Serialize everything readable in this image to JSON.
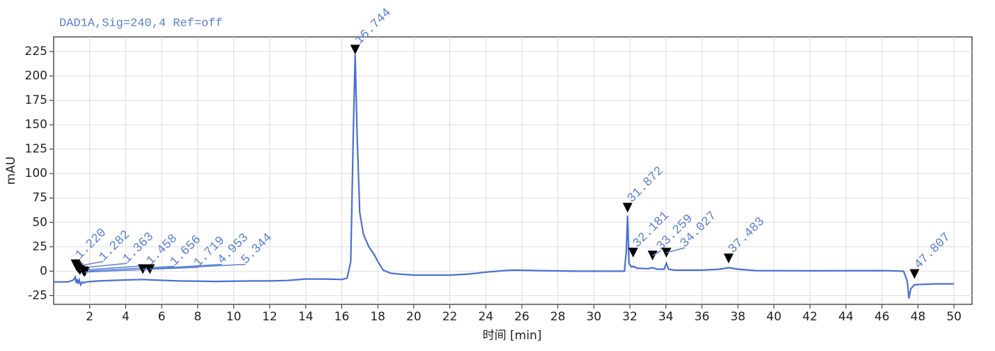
{
  "chart_data": {
    "type": "line",
    "title": "DAD1A,Sig=240,4  Ref=off",
    "x_label": "时间 [min]",
    "y_label": "mAU",
    "xlim": [
      0,
      51
    ],
    "ylim": [
      -34,
      240
    ],
    "xticks": [
      2,
      4,
      6,
      8,
      10,
      12,
      14,
      16,
      18,
      20,
      22,
      24,
      26,
      28,
      30,
      32,
      34,
      36,
      38,
      40,
      42,
      44,
      46,
      48,
      50
    ],
    "yticks": [
      -25,
      0,
      25,
      50,
      75,
      100,
      125,
      150,
      175,
      200,
      225
    ],
    "grid": true,
    "trace": {
      "color": "#4a6fd4",
      "x": [
        0,
        0.8,
        1.1,
        1.2,
        1.25,
        1.3,
        1.36,
        1.42,
        1.5,
        1.6,
        1.7,
        1.8,
        2.5,
        4,
        5,
        5.5,
        7,
        9,
        11,
        12,
        13,
        14,
        15,
        16,
        16.3,
        16.5,
        16.65,
        16.744,
        16.85,
        17.0,
        17.2,
        17.5,
        17.8,
        18.0,
        18.3,
        18.7,
        19.2,
        20,
        22,
        23,
        24,
        25,
        25.5,
        27,
        29,
        31,
        31.7,
        31.8,
        31.872,
        31.95,
        32.1,
        32.181,
        32.4,
        33,
        33.259,
        33.5,
        33.9,
        34.027,
        34.15,
        34.5,
        36,
        37,
        37.483,
        38,
        39,
        42,
        46,
        47.2,
        47.4,
        47.5,
        47.6,
        47.807,
        48.2,
        49,
        50
      ],
      "y": [
        -11,
        -11,
        -9,
        -6,
        -12,
        -8,
        -13,
        -9,
        -14,
        -11,
        -12,
        -11,
        -10,
        -9,
        -8.5,
        -9,
        -10,
        -10.5,
        -10,
        -10,
        -9.5,
        -8,
        -8,
        -8.5,
        -7,
        10,
        150,
        222,
        140,
        60,
        38,
        25,
        17,
        10,
        1,
        -2,
        -3,
        -4,
        -4,
        -3,
        -1,
        0.5,
        1,
        0.5,
        0,
        0,
        0,
        20,
        57,
        8,
        4,
        5,
        3,
        2.5,
        3.5,
        2,
        2,
        8,
        2,
        1,
        1,
        2,
        3.5,
        2,
        0.5,
        0.3,
        0.5,
        0,
        -10,
        -28,
        -18,
        -14,
        -13.5,
        -13,
        -13
      ]
    },
    "peaks": {
      "color": "#000000",
      "x": [
        1.22,
        1.282,
        1.363,
        1.458,
        1.656,
        1.719,
        4.953,
        5.344,
        16.744,
        31.872,
        32.181,
        33.259,
        34.027,
        37.483,
        47.807
      ],
      "y": [
        2,
        0,
        -2,
        -4,
        -5,
        -6,
        -3,
        -3,
        222,
        60,
        14,
        11,
        14,
        8,
        -8
      ],
      "value_labels": [
        "1.220",
        "1.282",
        "1.363",
        "1.458",
        "1.656",
        "1.719",
        "4.953",
        "5.344",
        "16.744",
        "31.872",
        "32.181",
        "33.259",
        "34.027",
        "37.483",
        "47.807"
      ]
    }
  }
}
